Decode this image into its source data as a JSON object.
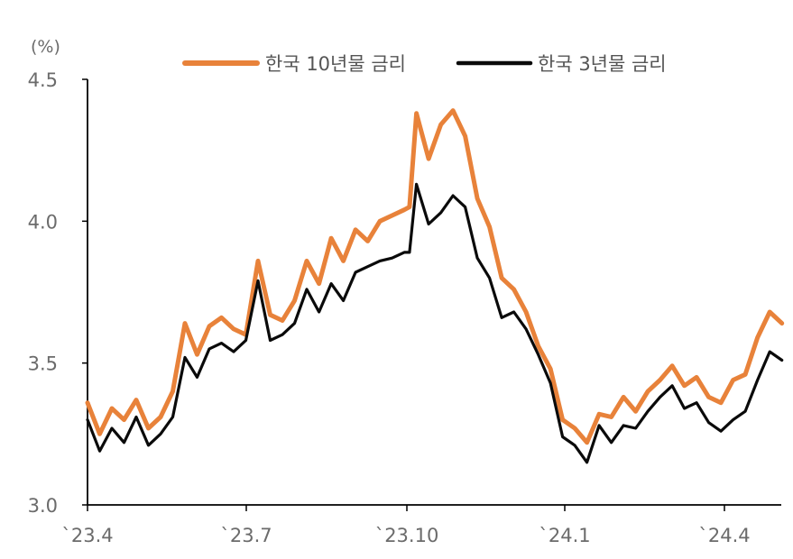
{
  "chart_data": {
    "type": "line",
    "y_unit": "(%)",
    "ylim": [
      3.0,
      4.5
    ],
    "y_ticks": [
      "3.0",
      "3.5",
      "4.0",
      "4.5"
    ],
    "x_ticks": [
      "`23.4",
      "`23.7",
      "`23.10",
      "`24.1",
      "`24.4"
    ],
    "grid": false,
    "legend_position": "top",
    "x": [
      "2023-04-01",
      "2023-04-08",
      "2023-04-15",
      "2023-04-22",
      "2023-04-29",
      "2023-05-06",
      "2023-05-13",
      "2023-05-20",
      "2023-05-27",
      "2023-06-03",
      "2023-06-10",
      "2023-06-17",
      "2023-06-24",
      "2023-07-01",
      "2023-07-08",
      "2023-07-15",
      "2023-07-22",
      "2023-07-29",
      "2023-08-05",
      "2023-08-12",
      "2023-08-19",
      "2023-08-26",
      "2023-09-02",
      "2023-09-09",
      "2023-09-16",
      "2023-09-23",
      "2023-09-30",
      "2023-10-03",
      "2023-10-07",
      "2023-10-14",
      "2023-10-21",
      "2023-10-28",
      "2023-11-04",
      "2023-11-11",
      "2023-11-18",
      "2023-11-25",
      "2023-12-02",
      "2023-12-09",
      "2023-12-16",
      "2023-12-23",
      "2023-12-30",
      "2024-01-06",
      "2024-01-13",
      "2024-01-20",
      "2024-01-27",
      "2024-02-03",
      "2024-02-10",
      "2024-02-17",
      "2024-02-24",
      "2024-03-02",
      "2024-03-09",
      "2024-03-16",
      "2024-03-23",
      "2024-03-30",
      "2024-04-06",
      "2024-04-13",
      "2024-04-20",
      "2024-04-27",
      "2024-05-04"
    ],
    "series": [
      {
        "name": "한국 10년물 금리",
        "color": "#e8823a",
        "values": [
          3.36,
          3.25,
          3.34,
          3.3,
          3.37,
          3.27,
          3.31,
          3.4,
          3.64,
          3.53,
          3.63,
          3.66,
          3.62,
          3.6,
          3.86,
          3.67,
          3.65,
          3.72,
          3.86,
          3.78,
          3.94,
          3.86,
          3.97,
          3.93,
          4.0,
          4.02,
          4.04,
          4.05,
          4.38,
          4.22,
          4.34,
          4.39,
          4.3,
          4.08,
          3.98,
          3.8,
          3.76,
          3.68,
          3.56,
          3.48,
          3.3,
          3.27,
          3.22,
          3.32,
          3.31,
          3.38,
          3.33,
          3.4,
          3.44,
          3.49,
          3.42,
          3.45,
          3.38,
          3.36,
          3.44,
          3.46,
          3.59,
          3.68,
          3.64
        ]
      },
      {
        "name": "한국 3년물 금리",
        "color": "#0a0a0a",
        "values": [
          3.3,
          3.19,
          3.27,
          3.22,
          3.31,
          3.21,
          3.25,
          3.31,
          3.52,
          3.45,
          3.55,
          3.57,
          3.54,
          3.58,
          3.79,
          3.58,
          3.6,
          3.64,
          3.76,
          3.68,
          3.78,
          3.72,
          3.82,
          3.84,
          3.86,
          3.87,
          3.89,
          3.89,
          4.13,
          3.99,
          4.03,
          4.09,
          4.05,
          3.87,
          3.8,
          3.66,
          3.68,
          3.62,
          3.53,
          3.43,
          3.24,
          3.21,
          3.15,
          3.28,
          3.22,
          3.28,
          3.27,
          3.33,
          3.38,
          3.42,
          3.34,
          3.36,
          3.29,
          3.26,
          3.3,
          3.33,
          3.44,
          3.54,
          3.51
        ]
      }
    ]
  }
}
